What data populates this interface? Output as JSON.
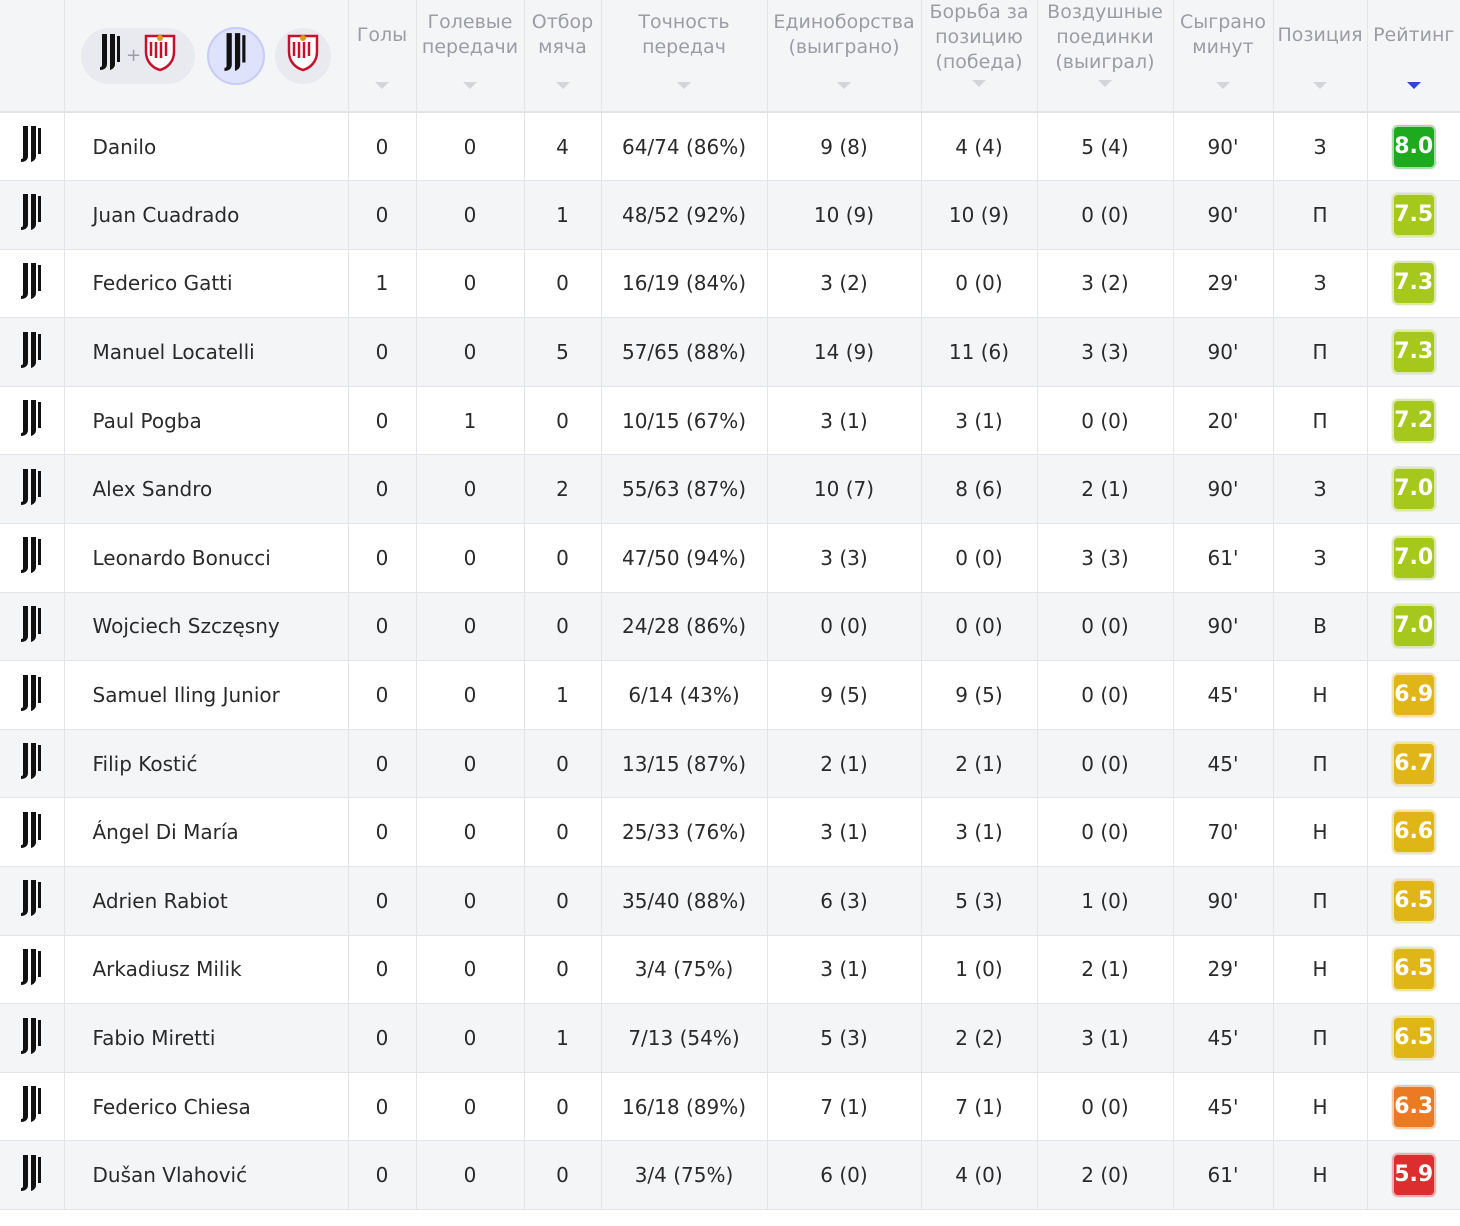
{
  "header": {
    "columns": [
      {
        "key": "goals",
        "label": "Голы"
      },
      {
        "key": "assists",
        "label": "Голевые передачи"
      },
      {
        "key": "tackles",
        "label": "Отбор мяча"
      },
      {
        "key": "passing",
        "label": "Точность передач"
      },
      {
        "key": "duels",
        "label": "Единоборства (выиграно)"
      },
      {
        "key": "ground_duels",
        "label": "Борьба за позицию (победа)"
      },
      {
        "key": "aerial",
        "label": "Воздушные поединки (выиграл)"
      },
      {
        "key": "minutes",
        "label": "Сыграно минут"
      },
      {
        "key": "position",
        "label": "Позиция"
      },
      {
        "key": "rating",
        "label": "Рейтинг",
        "sorted": true
      }
    ],
    "team_filter": {
      "plus": "+",
      "home_icon": "juventus-crest-icon",
      "away_icon": "sevilla-crest-icon"
    }
  },
  "colors": {
    "rating_dark_green": "#1eaa1e",
    "rating_lime": "#a6c81c",
    "rating_yellow": "#e0b518",
    "rating_orange": "#ec7a22",
    "rating_red": "#dc2e2e",
    "sort_active": "#3344dd"
  },
  "players": [
    {
      "name": "Danilo",
      "goals": "0",
      "assists": "0",
      "tackles": "4",
      "passing": "64/74 (86%)",
      "duels": "9 (8)",
      "ground_duels": "4 (4)",
      "aerial": "5 (4)",
      "minutes": "90'",
      "position": "З",
      "rating": "8.0",
      "color": "#1eaa1e"
    },
    {
      "name": "Juan Cuadrado",
      "goals": "0",
      "assists": "0",
      "tackles": "1",
      "passing": "48/52 (92%)",
      "duels": "10 (9)",
      "ground_duels": "10 (9)",
      "aerial": "0 (0)",
      "minutes": "90'",
      "position": "П",
      "rating": "7.5",
      "color": "#a6c81c"
    },
    {
      "name": "Federico Gatti",
      "goals": "1",
      "assists": "0",
      "tackles": "0",
      "passing": "16/19 (84%)",
      "duels": "3 (2)",
      "ground_duels": "0 (0)",
      "aerial": "3 (2)",
      "minutes": "29'",
      "position": "З",
      "rating": "7.3",
      "color": "#a6c81c"
    },
    {
      "name": "Manuel Locatelli",
      "goals": "0",
      "assists": "0",
      "tackles": "5",
      "passing": "57/65 (88%)",
      "duels": "14 (9)",
      "ground_duels": "11 (6)",
      "aerial": "3 (3)",
      "minutes": "90'",
      "position": "П",
      "rating": "7.3",
      "color": "#a6c81c"
    },
    {
      "name": "Paul Pogba",
      "goals": "0",
      "assists": "1",
      "tackles": "0",
      "passing": "10/15 (67%)",
      "duels": "3 (1)",
      "ground_duels": "3 (1)",
      "aerial": "0 (0)",
      "minutes": "20'",
      "position": "П",
      "rating": "7.2",
      "color": "#a6c81c"
    },
    {
      "name": "Alex Sandro",
      "goals": "0",
      "assists": "0",
      "tackles": "2",
      "passing": "55/63 (87%)",
      "duels": "10 (7)",
      "ground_duels": "8 (6)",
      "aerial": "2 (1)",
      "minutes": "90'",
      "position": "З",
      "rating": "7.0",
      "color": "#a6c81c"
    },
    {
      "name": "Leonardo Bonucci",
      "goals": "0",
      "assists": "0",
      "tackles": "0",
      "passing": "47/50 (94%)",
      "duels": "3 (3)",
      "ground_duels": "0 (0)",
      "aerial": "3 (3)",
      "minutes": "61'",
      "position": "З",
      "rating": "7.0",
      "color": "#a6c81c"
    },
    {
      "name": "Wojciech Szczęsny",
      "goals": "0",
      "assists": "0",
      "tackles": "0",
      "passing": "24/28 (86%)",
      "duels": "0 (0)",
      "ground_duels": "0 (0)",
      "aerial": "0 (0)",
      "minutes": "90'",
      "position": "В",
      "rating": "7.0",
      "color": "#a6c81c"
    },
    {
      "name": "Samuel Iling Junior",
      "goals": "0",
      "assists": "0",
      "tackles": "1",
      "passing": "6/14 (43%)",
      "duels": "9 (5)",
      "ground_duels": "9 (5)",
      "aerial": "0 (0)",
      "minutes": "45'",
      "position": "Н",
      "rating": "6.9",
      "color": "#e0b518"
    },
    {
      "name": "Filip Kostić",
      "goals": "0",
      "assists": "0",
      "tackles": "0",
      "passing": "13/15 (87%)",
      "duels": "2 (1)",
      "ground_duels": "2 (1)",
      "aerial": "0 (0)",
      "minutes": "45'",
      "position": "П",
      "rating": "6.7",
      "color": "#e0b518"
    },
    {
      "name": "Ángel Di María",
      "goals": "0",
      "assists": "0",
      "tackles": "0",
      "passing": "25/33 (76%)",
      "duels": "3 (1)",
      "ground_duels": "3 (1)",
      "aerial": "0 (0)",
      "minutes": "70'",
      "position": "Н",
      "rating": "6.6",
      "color": "#e0b518"
    },
    {
      "name": "Adrien Rabiot",
      "goals": "0",
      "assists": "0",
      "tackles": "0",
      "passing": "35/40 (88%)",
      "duels": "6 (3)",
      "ground_duels": "5 (3)",
      "aerial": "1 (0)",
      "minutes": "90'",
      "position": "П",
      "rating": "6.5",
      "color": "#e0b518"
    },
    {
      "name": "Arkadiusz Milik",
      "goals": "0",
      "assists": "0",
      "tackles": "0",
      "passing": "3/4 (75%)",
      "duels": "3 (1)",
      "ground_duels": "1 (0)",
      "aerial": "2 (1)",
      "minutes": "29'",
      "position": "Н",
      "rating": "6.5",
      "color": "#e0b518"
    },
    {
      "name": "Fabio Miretti",
      "goals": "0",
      "assists": "0",
      "tackles": "1",
      "passing": "7/13 (54%)",
      "duels": "5 (3)",
      "ground_duels": "2 (2)",
      "aerial": "3 (1)",
      "minutes": "45'",
      "position": "П",
      "rating": "6.5",
      "color": "#e0b518"
    },
    {
      "name": "Federico Chiesa",
      "goals": "0",
      "assists": "0",
      "tackles": "0",
      "passing": "16/18 (89%)",
      "duels": "7 (1)",
      "ground_duels": "7 (1)",
      "aerial": "0 (0)",
      "minutes": "45'",
      "position": "Н",
      "rating": "6.3",
      "color": "#ec7a22"
    },
    {
      "name": "Dušan Vlahović",
      "goals": "0",
      "assists": "0",
      "tackles": "0",
      "passing": "3/4 (75%)",
      "duels": "6 (0)",
      "ground_duels": "4 (0)",
      "aerial": "2 (0)",
      "minutes": "61'",
      "position": "Н",
      "rating": "5.9",
      "color": "#dc2e2e"
    }
  ]
}
